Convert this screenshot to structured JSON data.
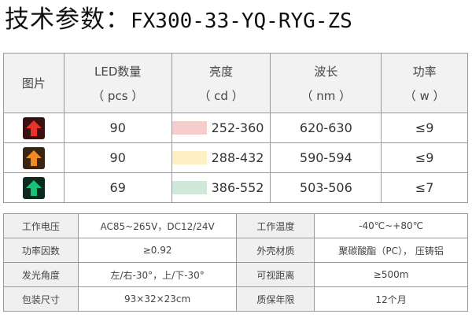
{
  "title": {
    "label": "技术参数：",
    "model": "FX300-33-YQ-RYG-ZS"
  },
  "spec_table": {
    "headers": {
      "image": "图片",
      "led_count": "LED数量",
      "led_count_unit": "（ pcs ）",
      "brightness": "亮度",
      "brightness_unit": "（ cd ）",
      "wavelength": "波长",
      "wavelength_unit": "（ nm ）",
      "power": "功率",
      "power_unit": "（ w ）"
    },
    "rows": [
      {
        "icon": "red-arrow-up-icon",
        "color": "#e8332a",
        "bg": "#3a1010",
        "led_count": "90",
        "swatch": "#f6cdcd",
        "brightness": "252-360",
        "wavelength": "620-630",
        "power": "≤9"
      },
      {
        "icon": "yellow-arrow-up-icon",
        "color": "#f08a24",
        "bg": "#3a2412",
        "led_count": "90",
        "swatch": "#fdf0c2",
        "brightness": "288-432",
        "wavelength": "590-594",
        "power": "≤9"
      },
      {
        "icon": "green-arrow-up-icon",
        "color": "#18c07a",
        "bg": "#0e2a1e",
        "led_count": "69",
        "swatch": "#cfe8d8",
        "brightness": "386-552",
        "wavelength": "503-506",
        "power": "≤7"
      }
    ]
  },
  "param_table": {
    "rows": [
      {
        "k1": "工作电压",
        "v1": "AC85~265V，DC12/24V",
        "k2": "工作温度",
        "v2": "-40℃~+80℃"
      },
      {
        "k1": "功率因数",
        "v1": "≥0.92",
        "k2": "外壳材质",
        "v2": "聚碳酸酯（PC），  压铸铝"
      },
      {
        "k1": "发光角度",
        "v1": "左/右-30°，上/下-30°",
        "k2": "可视距离",
        "v2": "≥500m"
      },
      {
        "k1": "包装尺寸",
        "v1": "93×32×23cm",
        "k2": "质保年限",
        "v2": "12个月"
      }
    ]
  }
}
